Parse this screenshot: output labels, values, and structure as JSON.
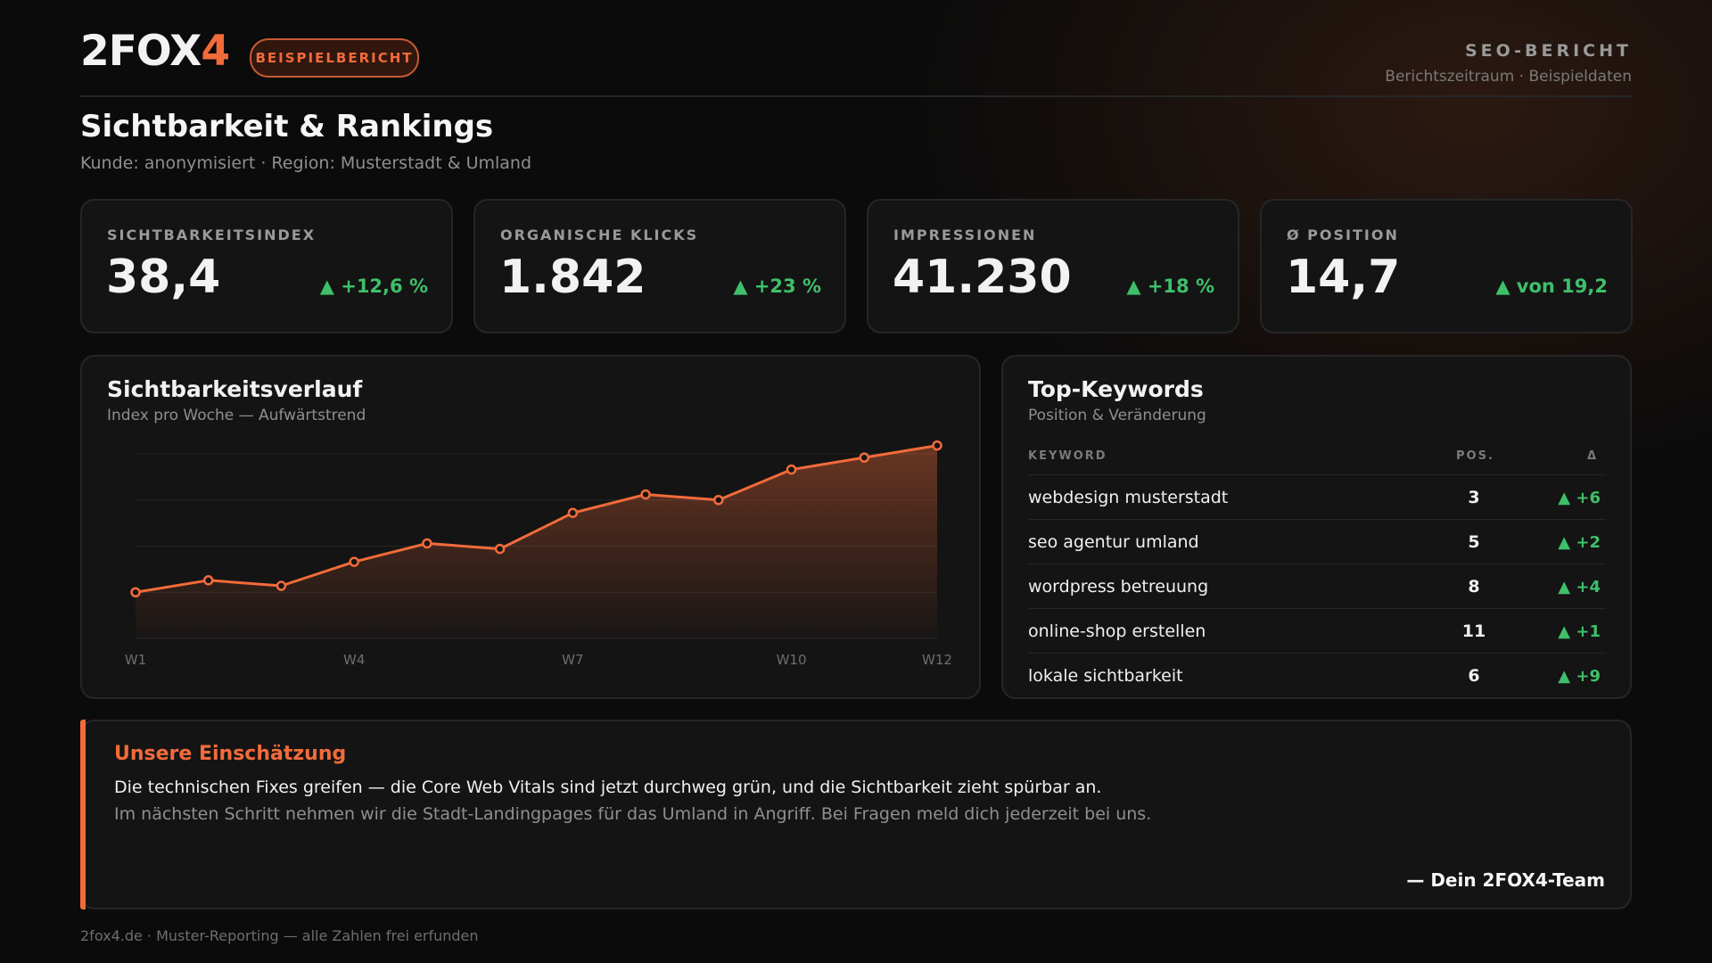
{
  "header": {
    "logo_main": "2FOX",
    "logo_accent": "4",
    "badge": "BEISPIELBERICHT",
    "report_title": "SEO-BERICHT",
    "report_sub": "Berichtszeitraum · Beispieldaten"
  },
  "page": {
    "title": "Sichtbarkeit & Rankings",
    "subtitle": "Kunde: anonymisiert · Region: Musterstadt & Umland"
  },
  "kpis": [
    {
      "label": "SICHTBARKEITSINDEX",
      "value": "38,4",
      "delta": "▲ +12,6 %"
    },
    {
      "label": "ORGANISCHE KLICKS",
      "value": "1.842",
      "delta": "▲ +23 %"
    },
    {
      "label": "IMPRESSIONEN",
      "value": "41.230",
      "delta": "▲ +18 %"
    },
    {
      "label": "Ø POSITION",
      "value": "14,7",
      "delta": "▲ von 19,2"
    }
  ],
  "chart": {
    "title": "Sichtbarkeitsverlauf",
    "subtitle": "Index pro Woche — Aufwärtstrend"
  },
  "chart_data": {
    "type": "area",
    "x": [
      "W1",
      "W2",
      "W3",
      "W4",
      "W5",
      "W6",
      "W7",
      "W8",
      "W9",
      "W10",
      "W11",
      "W12"
    ],
    "tick_labels": [
      "W1",
      "W4",
      "W7",
      "W10",
      "W12"
    ],
    "series": [
      {
        "values": [
          27.0,
          28.3,
          27.7,
          30.3,
          32.3,
          31.7,
          35.6,
          37.6,
          37.0,
          40.3,
          41.6,
          42.9
        ]
      }
    ],
    "ylim": [
      22,
      42
    ],
    "grid": true,
    "line_color": "#f26b3a"
  },
  "keywords": {
    "title": "Top-Keywords",
    "subtitle": "Position & Veränderung",
    "col_keyword": "KEYWORD",
    "col_pos": "POS.",
    "col_delta": "Δ",
    "rows": [
      {
        "keyword": "webdesign musterstadt",
        "pos": "3",
        "delta": "▲ +6"
      },
      {
        "keyword": "seo agentur umland",
        "pos": "5",
        "delta": "▲ +2"
      },
      {
        "keyword": "wordpress betreuung",
        "pos": "8",
        "delta": "▲ +4"
      },
      {
        "keyword": "online-shop erstellen",
        "pos": "11",
        "delta": "▲ +1"
      },
      {
        "keyword": "lokale sichtbarkeit",
        "pos": "6",
        "delta": "▲ +9"
      }
    ]
  },
  "note": {
    "title": "Unsere Einschätzung",
    "line1": "Die technischen Fixes greifen — die Core Web Vitals sind jetzt durchweg grün, und die Sichtbarkeit zieht spürbar an.",
    "line2": "Im nächsten Schritt nehmen wir die Stadt-Landingpages für das Umland in Angriff. Bei Fragen meld dich jederzeit bei uns.",
    "signature": "— Dein 2FOX4-Team"
  },
  "footer": "2fox4.de · Muster-Reporting — alle Zahlen frei erfunden",
  "colors": {
    "accent": "#f26b3a",
    "positive": "#3fbf6a",
    "card": "#141414"
  }
}
